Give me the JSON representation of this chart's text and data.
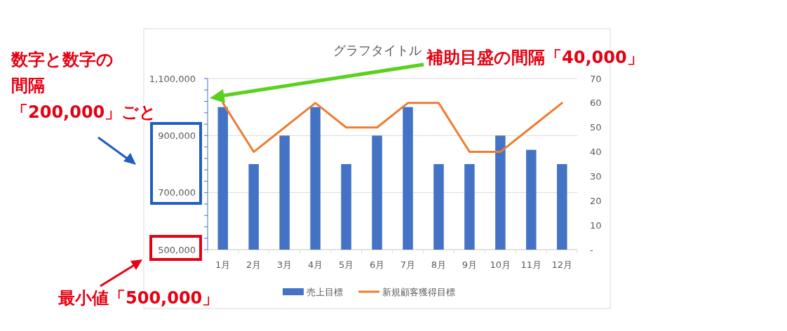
{
  "chart_data": {
    "type": "bar",
    "title": "グラフタイトル",
    "categories": [
      "1月",
      "2月",
      "3月",
      "4月",
      "5月",
      "6月",
      "7月",
      "8月",
      "9月",
      "10月",
      "11月",
      "12月"
    ],
    "series": [
      {
        "name": "売上目標",
        "color": "#4472c4",
        "values": [
          1000000,
          800000,
          900000,
          1000000,
          800000,
          900000,
          1000000,
          800000,
          800000,
          900000,
          850000,
          800000
        ]
      },
      {
        "name": "新規顧客獲得目標",
        "type": "line",
        "axis": "y2",
        "color": "#ed7d31",
        "values": [
          60,
          40,
          50,
          60,
          50,
          50,
          60,
          60,
          40,
          40,
          50,
          60
        ]
      }
    ],
    "ylim": [
      500000,
      1100000
    ],
    "yticks": [
      {
        "value": 500000,
        "label": "500,000"
      },
      {
        "value": 540000,
        "label": null
      },
      {
        "value": 580000,
        "label": null
      },
      {
        "value": 620000,
        "label": null
      },
      {
        "value": 660000,
        "label": null
      },
      {
        "value": 700000,
        "label": "700,000"
      },
      {
        "value": 740000,
        "label": null
      },
      {
        "value": 780000,
        "label": null
      },
      {
        "value": 820000,
        "label": null
      },
      {
        "value": 860000,
        "label": null
      },
      {
        "value": 900000,
        "label": "900,000"
      },
      {
        "value": 940000,
        "label": null
      },
      {
        "value": 980000,
        "label": null
      },
      {
        "value": 1020000,
        "label": null
      },
      {
        "value": 1060000,
        "label": null
      },
      {
        "value": 1100000,
        "label": "1,100,000"
      }
    ],
    "y2lim": [
      0,
      70
    ],
    "y2ticks": [
      {
        "value": 0,
        "label": "-"
      },
      10,
      20,
      30,
      40,
      50,
      60,
      70
    ],
    "grid": "y",
    "legend": "bottom",
    "marker": "none",
    "line_style": "solid",
    "annotations": [
      "数字と数字の",
      "間隔",
      "「200,000」ごと",
      "補助目盛の間隔「40,000」",
      "最小値「500,000」"
    ]
  }
}
